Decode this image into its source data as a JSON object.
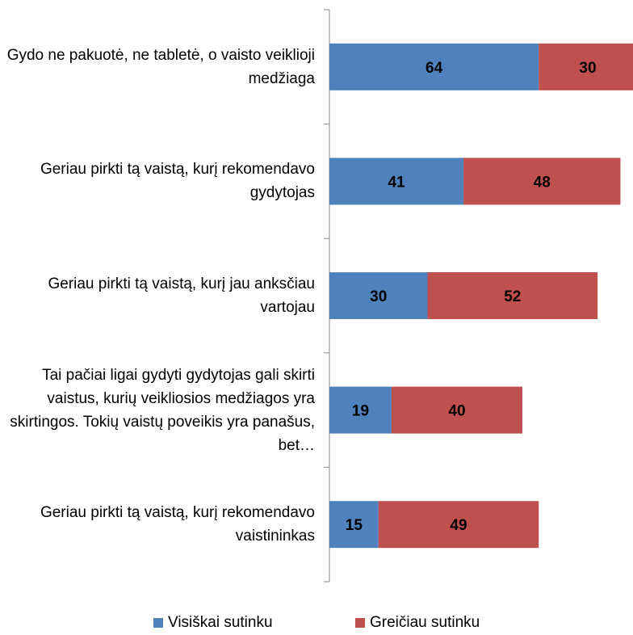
{
  "chart_data": {
    "type": "stacked_barh",
    "categories": [
      "Gydo ne pakuotė, ne tabletė, o vaisto veiklioji medžiaga",
      "Geriau pirkti tą vaistą, kurį rekomendavo gydytojas",
      "Geriau pirkti tą vaistą, kurį jau anksčiau vartojau",
      "Tai pačiai ligai gydyti gydytojas gali skirti vaistus, kurių veikliosios medžiagos yra skirtingos. Tokių vaistų poveikis yra panašus, bet…",
      "Geriau pirkti tą vaistą, kurį rekomendavo vaistininkas"
    ],
    "series": [
      {
        "name": "Visiškai sutinku",
        "color": "#4f81bd",
        "values": [
          64,
          41,
          30,
          19,
          15
        ]
      },
      {
        "name": "Greičiau sutinku",
        "color": "#c0504d",
        "values": [
          30,
          48,
          52,
          40,
          49
        ]
      }
    ],
    "legend": "bottom"
  }
}
